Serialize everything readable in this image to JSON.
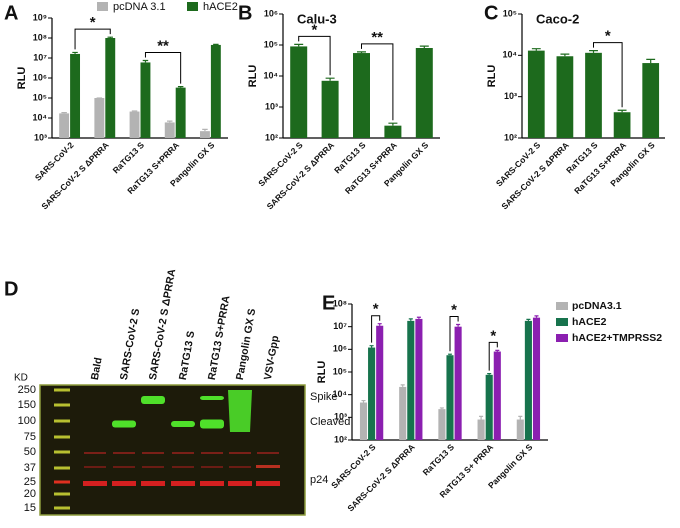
{
  "chart_data": [
    {
      "type": "bar",
      "panel": "A",
      "ylabel": "RLU",
      "log_scale": true,
      "legend": "top",
      "ylim": [
        1000,
        1000000000
      ],
      "yticks": [
        {
          "value": 1000,
          "label": "10³"
        },
        {
          "value": 10000,
          "label": "10⁴"
        },
        {
          "value": 100000,
          "label": "10⁵"
        },
        {
          "value": 1000000,
          "label": "10⁶"
        },
        {
          "value": 10000000,
          "label": "10⁷"
        },
        {
          "value": 100000000,
          "label": "10⁸"
        },
        {
          "value": 1000000000,
          "label": "10⁹"
        }
      ],
      "categories": [
        "SARS-CoV-2",
        "SARS-CoV-2 S ΔPRRA",
        "RaTG13 S",
        "RaTG13 S+PRRA",
        "Pangolin GX S"
      ],
      "series": [
        {
          "name": "pcDNA 3.1",
          "color": "#b3b3b3",
          "values": [
            17000,
            100000,
            21000,
            6000,
            2200
          ],
          "errors": [
            1500,
            0,
            1500,
            1000,
            500
          ]
        },
        {
          "name": "hACE2",
          "color": "#1d6a1d",
          "values": [
            16000000,
            100000000,
            6000000,
            330000,
            45000000
          ],
          "errors": [
            3000000,
            10000000,
            1500000,
            40000,
            3000000
          ]
        }
      ],
      "annotations": [
        {
          "label": "*",
          "from": [
            1,
            0
          ],
          "to": [
            1,
            1
          ]
        },
        {
          "label": "**",
          "from": [
            1,
            2
          ],
          "to": [
            1,
            3
          ]
        }
      ]
    },
    {
      "type": "bar",
      "panel": "B",
      "title": "Calu-3",
      "ylabel": "RLU",
      "log_scale": true,
      "ylim": [
        100,
        1000000
      ],
      "yticks": [
        {
          "value": 100,
          "label": "10²"
        },
        {
          "value": 1000,
          "label": "10³"
        },
        {
          "value": 10000,
          "label": "10⁴"
        },
        {
          "value": 100000,
          "label": "10⁵"
        },
        {
          "value": 1000000,
          "label": "10⁶"
        }
      ],
      "categories": [
        "SARS-CoV-2 S",
        "SARS-CoV-2 S ΔPRRA",
        "RaTG13 S",
        "RaTG13 S+PRRA",
        "Pangolin GX S"
      ],
      "series": [
        {
          "color": "#1d6a1d",
          "values": [
            90000,
            7000,
            55000,
            250,
            80000
          ],
          "errors": [
            15000,
            1500,
            5000,
            50,
            12000
          ]
        }
      ],
      "annotations": [
        {
          "label": "*",
          "from": [
            0,
            0
          ],
          "to": [
            0,
            1
          ]
        },
        {
          "label": "**",
          "from": [
            0,
            2
          ],
          "to": [
            0,
            3
          ]
        }
      ]
    },
    {
      "type": "bar",
      "panel": "C",
      "title": "Caco-2",
      "ylabel": "RLU",
      "log_scale": true,
      "ylim": [
        100,
        100000
      ],
      "yticks": [
        {
          "value": 100,
          "label": "10²"
        },
        {
          "value": 1000,
          "label": "10³"
        },
        {
          "value": 10000,
          "label": "10⁴"
        },
        {
          "value": 100000,
          "label": "10⁵"
        }
      ],
      "categories": [
        "SARS-CoV-2 S",
        "SARS-CoV-2 S ΔPRRA",
        "RaTG13 S",
        "RaTG13 S+PRRA",
        "Pangolin GX S"
      ],
      "series": [
        {
          "color": "#1d6a1d",
          "values": [
            13000,
            9500,
            11500,
            420,
            6500
          ],
          "errors": [
            1500,
            1200,
            1500,
            50,
            1500
          ]
        }
      ],
      "annotations": [
        {
          "label": "*",
          "from": [
            0,
            2
          ],
          "to": [
            0,
            3
          ]
        }
      ]
    },
    {
      "type": "bar",
      "panel": "E",
      "ylabel": "RLU",
      "log_scale": true,
      "legend": "right",
      "ylim": [
        100,
        100000000
      ],
      "yticks": [
        {
          "value": 100,
          "label": "10²"
        },
        {
          "value": 1000,
          "label": "10³"
        },
        {
          "value": 10000,
          "label": "10⁴"
        },
        {
          "value": 100000,
          "label": "10⁵"
        },
        {
          "value": 1000000,
          "label": "10⁶"
        },
        {
          "value": 10000000,
          "label": "10⁷"
        },
        {
          "value": 100000000,
          "label": "10⁸"
        }
      ],
      "categories": [
        "SARS-CoV-2 S",
        "SARS-CoV-2 S ΔPRRA",
        "RaTG13 S",
        "RaTG13 S+ PRRA",
        "Pangolin GX S"
      ],
      "series": [
        {
          "name": "pcDNA3.1",
          "color": "#b3b3b3",
          "values": [
            4500,
            22000,
            2300,
            800,
            800
          ],
          "errors": [
            1000,
            5000,
            300,
            300,
            300
          ]
        },
        {
          "name": "hACE2",
          "color": "#17734d",
          "values": [
            1200000,
            18000000,
            550000,
            75000,
            18000000
          ],
          "errors": [
            250000,
            4000000,
            60000,
            10000,
            3000000
          ]
        },
        {
          "name": "hACE2+TMPRSS2",
          "color": "#8b1fb0",
          "values": [
            11000000,
            22000000,
            10000000,
            800000,
            25000000
          ],
          "errors": [
            2500000,
            4000000,
            2500000,
            100000,
            5000000
          ]
        }
      ],
      "annotations": [
        {
          "label": "*",
          "from": [
            1,
            0
          ],
          "to": [
            2,
            0
          ]
        },
        {
          "label": "*",
          "from": [
            1,
            2
          ],
          "to": [
            2,
            2
          ]
        },
        {
          "label": "*",
          "from": [
            1,
            3
          ],
          "to": [
            2,
            3
          ]
        }
      ]
    }
  ],
  "blot": {
    "panel": "D",
    "lanes": [
      "Bald",
      "SARS-CoV-2 S",
      "SARS-CoV-2 S ΔPRRA",
      "RaTG13 S",
      "RaTG13 S+PRRA",
      "Pangolin GX S",
      "VSV-Gpp"
    ],
    "marker_unit": "KD",
    "markers": [
      250,
      150,
      100,
      75,
      50,
      37,
      25,
      20,
      15
    ],
    "bands": [
      "Spike",
      "Cleaved",
      "p24"
    ]
  }
}
